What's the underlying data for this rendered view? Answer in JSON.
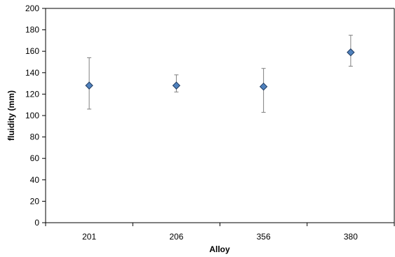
{
  "chart_data": {
    "type": "scatter",
    "title": "",
    "xlabel": "Alloy",
    "ylabel": "fluidity (mm)",
    "categories": [
      "201",
      "206",
      "356",
      "380"
    ],
    "series": [
      {
        "values": [
          128,
          128,
          127,
          159
        ],
        "error_low": [
          106,
          122,
          103,
          146
        ],
        "error_high": [
          154,
          138,
          144,
          175
        ],
        "color": "#4F81BD",
        "marker": "diamond"
      }
    ],
    "ylim": [
      0,
      200
    ],
    "yticks": [
      "0",
      "20",
      "40",
      "60",
      "80",
      "100",
      "120",
      "140",
      "160",
      "180",
      "200"
    ],
    "grid": false,
    "legend": "none"
  }
}
